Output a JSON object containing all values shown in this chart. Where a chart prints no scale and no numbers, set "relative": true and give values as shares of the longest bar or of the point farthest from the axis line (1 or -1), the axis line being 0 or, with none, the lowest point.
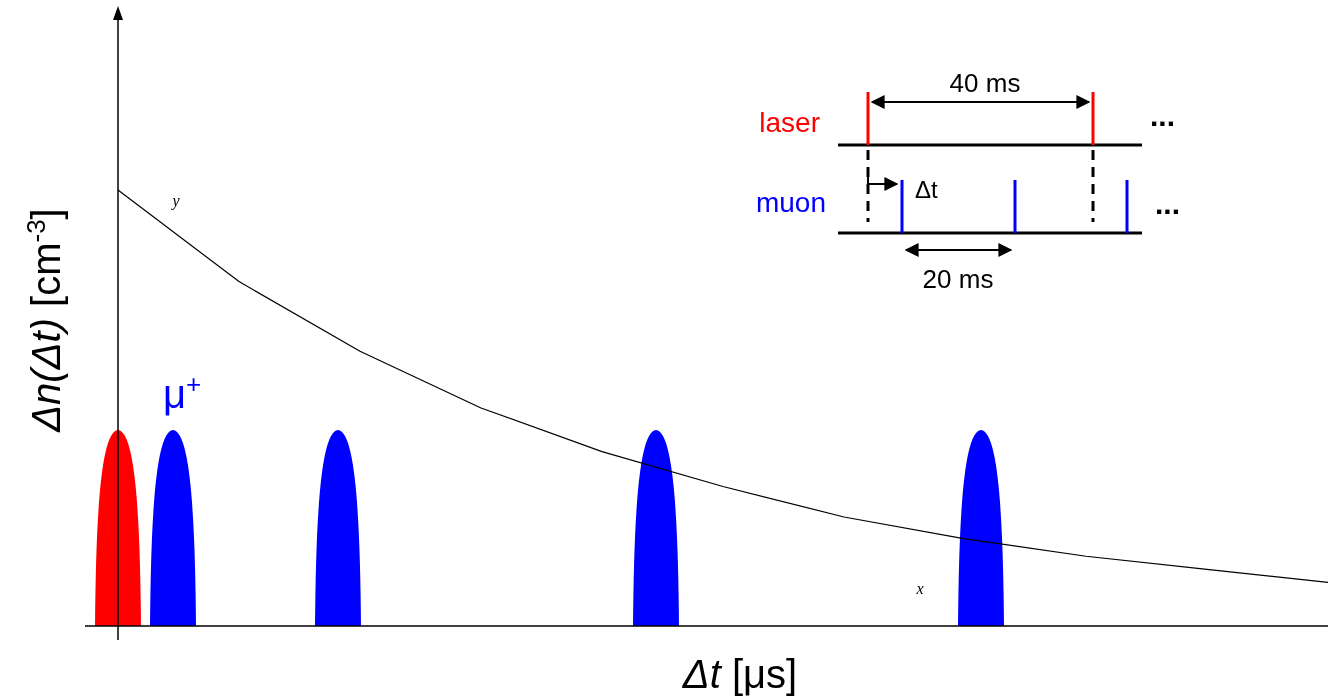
{
  "chart_data": {
    "type": "line",
    "relative": true,
    "xlabel": "Δt [μs]",
    "ylabel": "Δn(Δt) [cm$^{-3}$]",
    "categories": [
      null,
      null,
      null,
      null,
      null,
      null,
      null,
      null,
      null,
      null,
      null
    ],
    "series": [
      {
        "color": "#000000",
        "values": [
          1,
          0.79,
          0.63,
          0.5,
          0.4,
          0.32,
          0.25,
          0.2,
          0.16,
          0.13,
          0.1
        ]
      }
    ],
    "annotations": [
      "μ$^{+}$",
      "y",
      "x",
      "laser",
      "muon",
      "40 ms",
      "Δt",
      "20 ms",
      "...",
      "..."
    ]
  }
}
